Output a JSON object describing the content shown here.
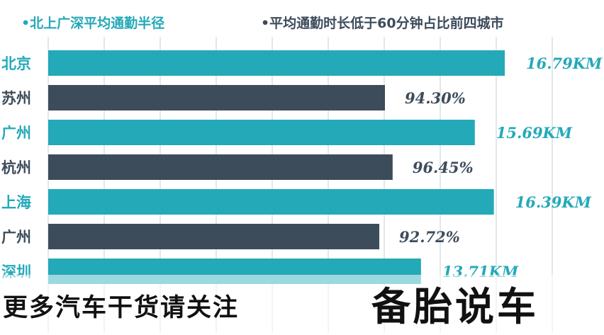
{
  "legend": {
    "radius": "•北上广深平均通勤半径",
    "share": "•平均通勤时长低于60分钟占比前四城市"
  },
  "colors": {
    "teal": "#24a9b8",
    "slate": "#3d4c5b",
    "grid": "#cfd8dc"
  },
  "chart_data": {
    "type": "bar",
    "orientation": "horizontal",
    "grid": true,
    "bars": [
      {
        "category": "北京",
        "value": 16.79,
        "label": "16.79KM",
        "series": "radius"
      },
      {
        "category": "苏州",
        "value": 94.3,
        "label": "94.30%",
        "series": "share"
      },
      {
        "category": "广州",
        "value": 15.69,
        "label": "15.69KM",
        "series": "radius"
      },
      {
        "category": "杭州",
        "value": 96.45,
        "label": "96.45%",
        "series": "share"
      },
      {
        "category": "上海",
        "value": 16.39,
        "label": "16.39KM",
        "series": "radius"
      },
      {
        "category": "广州",
        "value": 92.72,
        "label": "92.72%",
        "series": "share"
      },
      {
        "category": "深圳",
        "value": 13.71,
        "label": "13.71KM",
        "series": "radius"
      },
      {
        "category": "",
        "value": 0,
        "label": "",
        "series": "share"
      }
    ]
  },
  "caption": {
    "left": "更多汽车干货请关注",
    "right": "备胎说车"
  }
}
